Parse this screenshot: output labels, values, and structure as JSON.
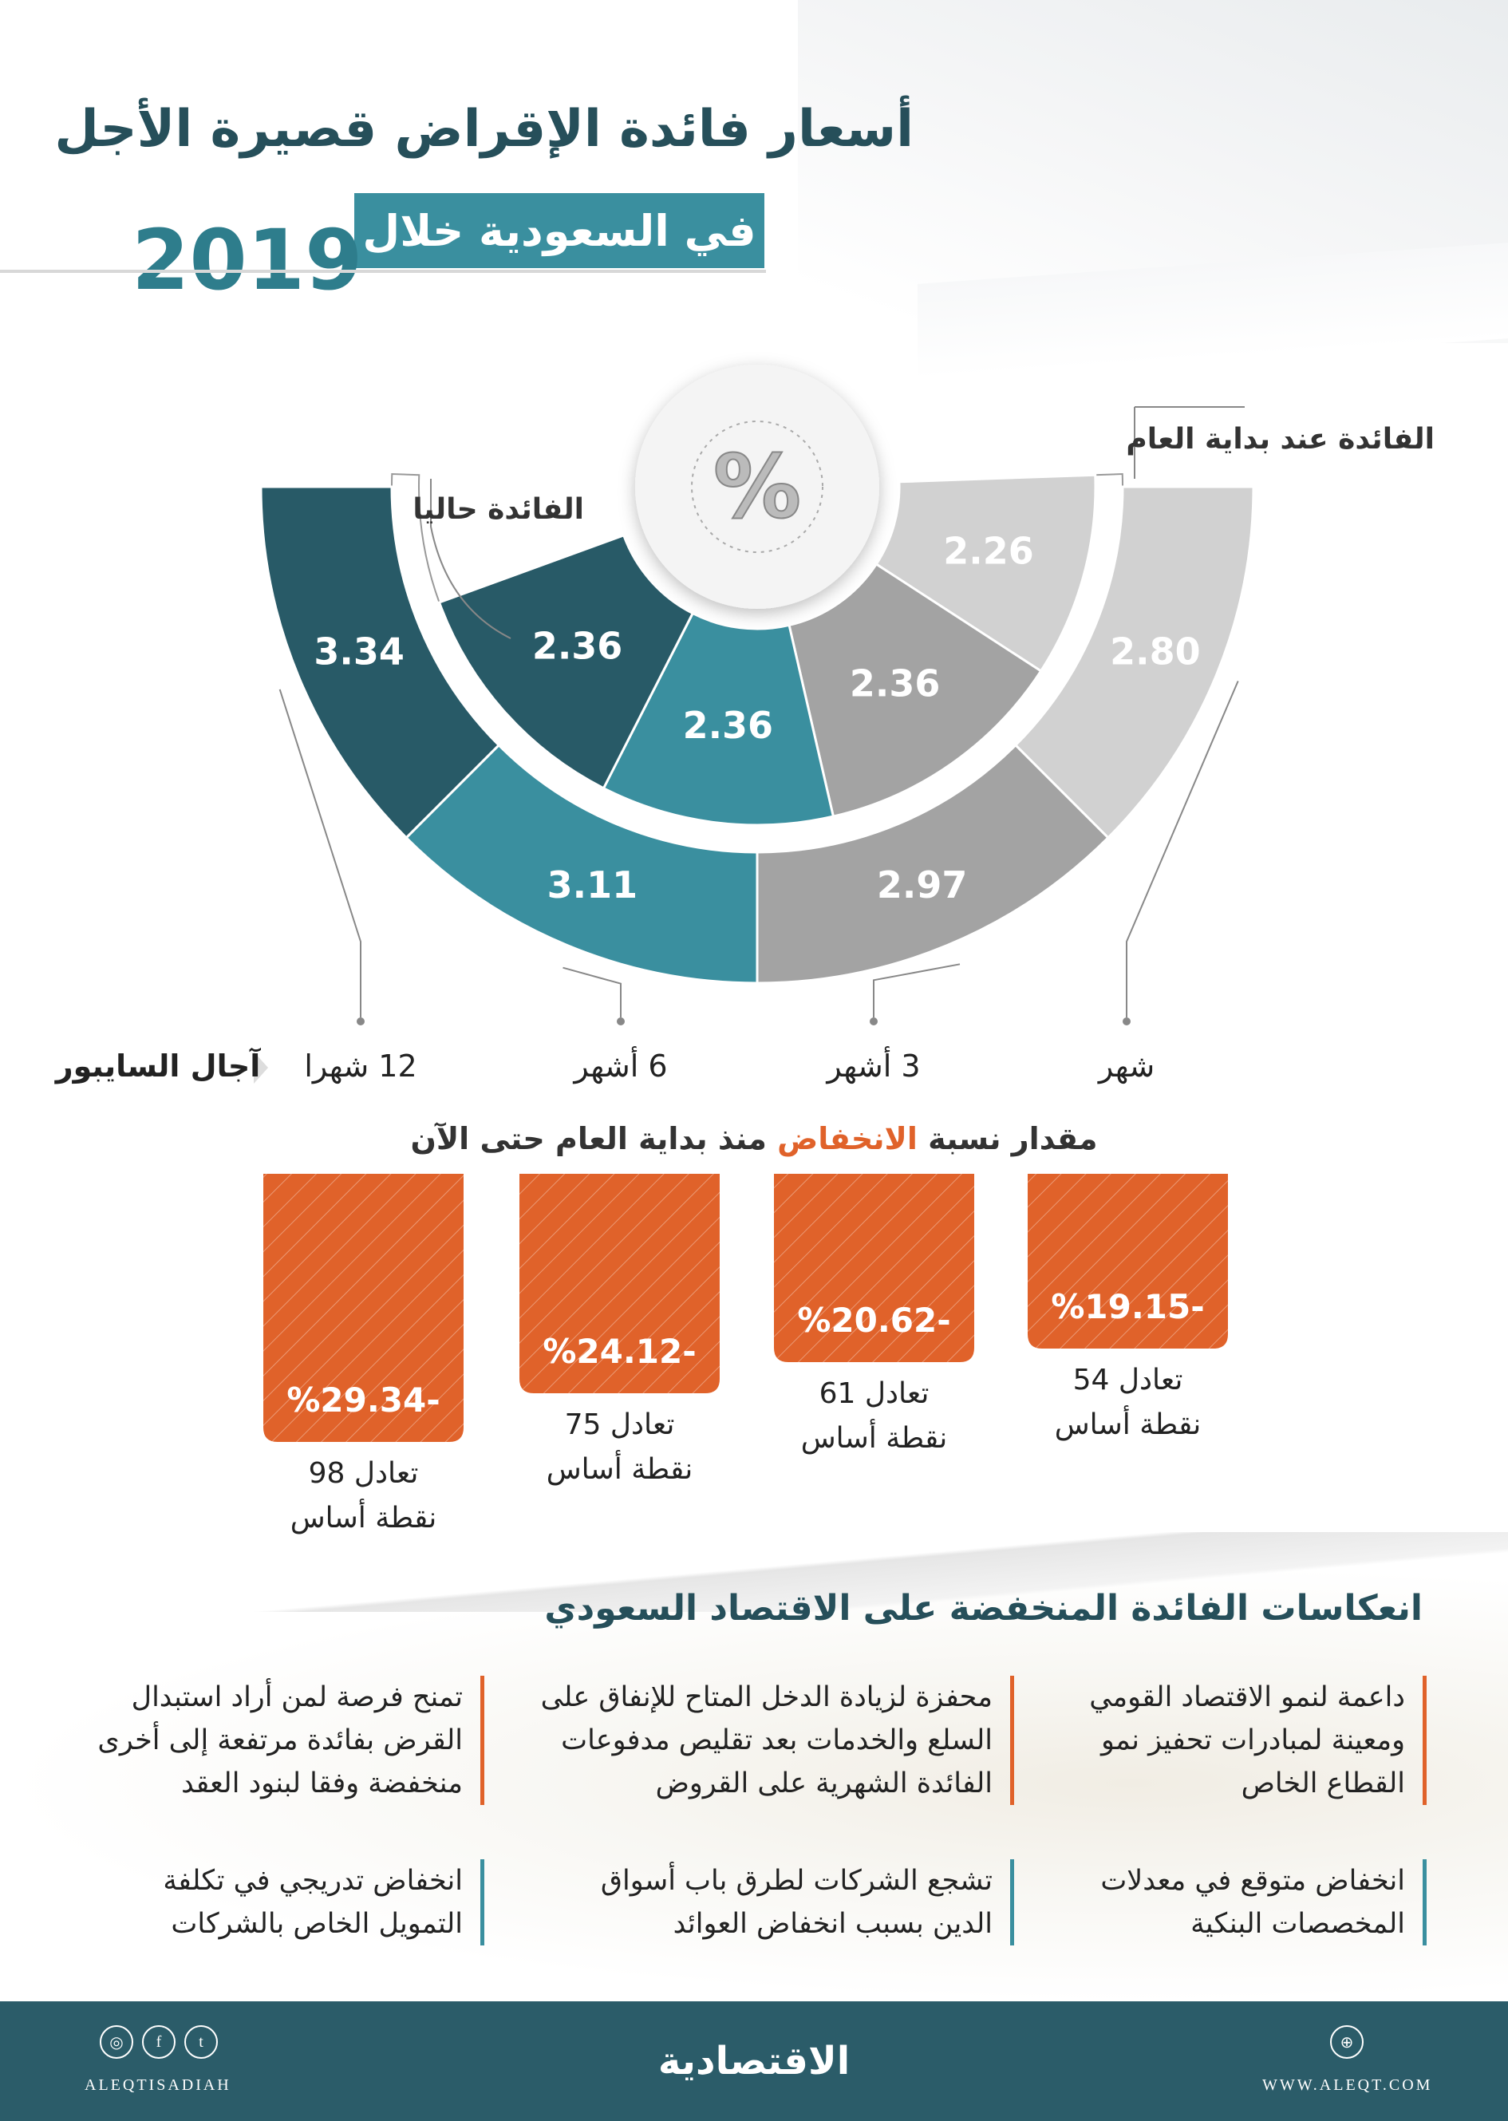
{
  "header": {
    "title": "أسعار فائدة الإقراض قصيرة الأجل",
    "subtitle": "في السعودية خلال",
    "year": "2019"
  },
  "chart_data": [
    {
      "type": "semi-donut",
      "center_label": "%",
      "categories": [
        "شهر",
        "3 أشهر",
        "6 أشهر",
        "12 شهرا"
      ],
      "axis_title": "آجال السايبور",
      "series": [
        {
          "name": "الفائدة عند بداية العام",
          "values": [
            2.8,
            2.97,
            3.11,
            3.34
          ],
          "labels": [
            "2.80",
            "2.97",
            "3.11",
            "3.34"
          ],
          "colors": [
            "#d1d1d1",
            "#a3a3a3",
            "#3a8f9f",
            "#285a67"
          ]
        },
        {
          "name": "الفائدة حاليا",
          "values": [
            2.26,
            2.36,
            2.36,
            2.36
          ],
          "labels": [
            "2.26",
            "2.36",
            "2.36",
            "2.36"
          ],
          "colors": [
            "#d1d1d1",
            "#a3a3a3",
            "#3a8f9f",
            "#285a67"
          ]
        }
      ]
    },
    {
      "type": "bar",
      "title_pre": "مقدار نسبة",
      "title_highlight": "الانخفاض",
      "title_post": "منذ بداية العام حتى الآن",
      "categories": [
        "شهر",
        "3 أشهر",
        "6 أشهر",
        "12 شهرا"
      ],
      "values": [
        -19.15,
        -20.62,
        -24.12,
        -29.34
      ],
      "labels": [
        "%19.15-",
        "%20.62-",
        "%24.12-",
        "%29.34-"
      ],
      "basis_points": [
        "تعادل 54",
        "تعادل 61",
        "تعادل 75",
        "تعادل 98"
      ],
      "basis_unit": "نقطة أساس",
      "color": "#e0622a"
    }
  ],
  "impacts": {
    "title": "انعكاسات الفائدة المنخفضة على الاقتصاد السعودي",
    "items": [
      {
        "text": "داعمة لنمو الاقتصاد القومي ومعينة لمبادرات تحفيز نمو القطاع الخاص",
        "accent": "#e0622a"
      },
      {
        "text": "محفزة لزيادة الدخل المتاح للإنفاق على السلع والخدمات بعد تقليص مدفوعات الفائدة الشهرية على القروض",
        "accent": "#e0622a"
      },
      {
        "text": "تمنح فرصة لمن أراد استبدال القرض بفائدة مرتفعة إلى أخرى منخفضة وفقا لبنود العقد",
        "accent": "#e0622a"
      },
      {
        "text": "انخفاض متوقع في معدلات المخصصات البنكية",
        "accent": "#3a8f9f"
      },
      {
        "text": "تشجع الشركات لطرق باب أسواق الدين بسبب انخفاض العوائد",
        "accent": "#3a8f9f"
      },
      {
        "text": "انخفاض تدريجي في تكلفة التمويل الخاص بالشركات",
        "accent": "#3a8f9f"
      }
    ]
  },
  "footer": {
    "logo": "الاقتصادية",
    "handle": "ALEQTISADIAH",
    "website": "WWW.ALEQT.COM",
    "social_icons": [
      "instagram-icon",
      "facebook-icon",
      "twitter-icon"
    ],
    "web_icon": "globe-icon",
    "bg_color": "#2b5c69"
  }
}
